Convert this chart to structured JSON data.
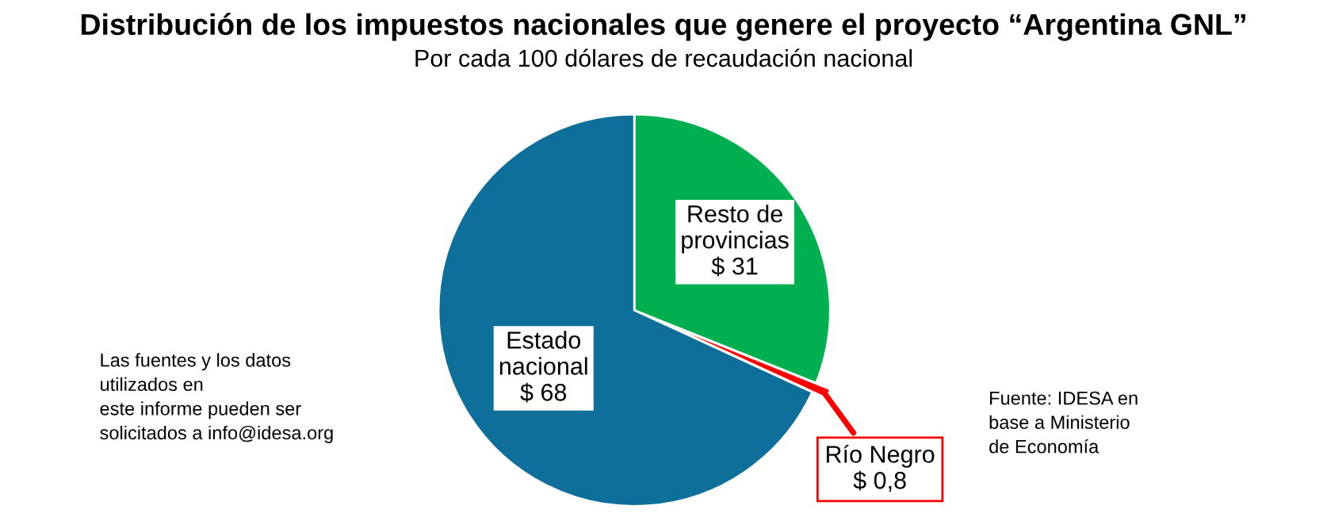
{
  "chart_data": {
    "type": "pie",
    "title": "Distribución de los impuestos nacionales que genere el proyecto “Argentina GNL”",
    "subtitle": "Por cada 100 dólares de recaudación nacional",
    "categories": [
      "Resto de\nprovincias",
      "Río Negro",
      "Estado\nnacional"
    ],
    "values": [
      31,
      0.8,
      68
    ],
    "value_labels": [
      "$ 31",
      "$ 0,8",
      "$ 68"
    ],
    "colors": [
      "#00b050",
      "#ff0000",
      "#0e6f9a"
    ],
    "annotations": [
      "Las fuentes y los datos\nutilizados en\neste informe pueden ser\nsolicitados a info@idesa.org",
      "Fuente: IDESA en\nbase a Ministerio\nde Economía"
    ]
  }
}
